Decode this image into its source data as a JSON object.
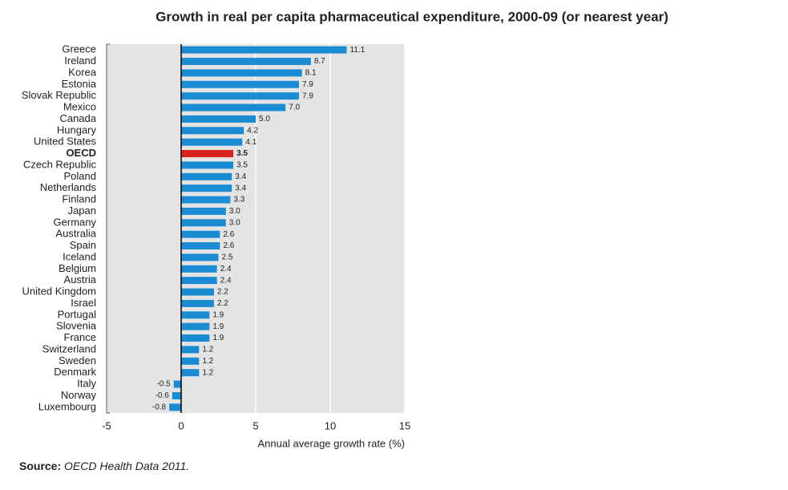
{
  "chart_data": {
    "type": "barh",
    "title": "Growth in real per capita pharmaceutical expenditure, 2000-09 (or nearest year)",
    "categories": [
      "Greece",
      "Ireland",
      "Korea",
      "Estonia",
      "Slovak Republic",
      "Mexico",
      "Canada",
      "Hungary",
      "United States",
      "OECD",
      "Czech Republic",
      "Poland",
      "Netherlands",
      "Finland",
      "Japan",
      "Germany",
      "Australia",
      "Spain",
      "Iceland",
      "Belgium",
      "Austria",
      "United Kingdom",
      "Israel",
      "Portugal",
      "Slovenia",
      "France",
      "Switzerland",
      "Sweden",
      "Denmark",
      "Italy",
      "Norway",
      "Luxembourg"
    ],
    "values": [
      11.1,
      8.7,
      8.1,
      7.9,
      7.9,
      7.0,
      5.0,
      4.2,
      4.1,
      3.5,
      3.5,
      3.4,
      3.4,
      3.3,
      3.0,
      3.0,
      2.6,
      2.6,
      2.5,
      2.4,
      2.4,
      2.2,
      2.2,
      1.9,
      1.9,
      1.9,
      1.2,
      1.2,
      1.2,
      -0.5,
      -0.6,
      -0.8
    ],
    "value_labels": [
      "11.1",
      "8.7",
      "8.1",
      "7.9",
      "7.9",
      "7.0",
      "5.0",
      "4.2",
      "4.1",
      "3.5",
      "3.5",
      "3.4",
      "3.4",
      "3.3",
      "3.0",
      "3.0",
      "2.6",
      "2.6",
      "2.5",
      "2.4",
      "2.4",
      "2.2",
      "2.2",
      "1.9",
      "1.9",
      "1.9",
      "1.2",
      "1.2",
      "1.2",
      "-0.5",
      "-0.6",
      "-0.8"
    ],
    "colors": [
      "#1b8bd3",
      "#1b8bd3",
      "#1b8bd3",
      "#1b8bd3",
      "#1b8bd3",
      "#1b8bd3",
      "#1b8bd3",
      "#1b8bd3",
      "#1b8bd3",
      "#d9221c",
      "#1b8bd3",
      "#1b8bd3",
      "#1b8bd3",
      "#1b8bd3",
      "#1b8bd3",
      "#1b8bd3",
      "#1b8bd3",
      "#1b8bd3",
      "#1b8bd3",
      "#1b8bd3",
      "#1b8bd3",
      "#1b8bd3",
      "#1b8bd3",
      "#1b8bd3",
      "#1b8bd3",
      "#1b8bd3",
      "#1b8bd3",
      "#1b8bd3",
      "#1b8bd3",
      "#1b8bd3",
      "#1b8bd3",
      "#1b8bd3"
    ],
    "xlim": [
      -5,
      15
    ],
    "xticks": [
      -5,
      0,
      5,
      10,
      15
    ],
    "grid": true,
    "xlabel": "Annual average growth rate (%)",
    "source_label": "Source:",
    "source": "OECD Health Data 2011."
  }
}
